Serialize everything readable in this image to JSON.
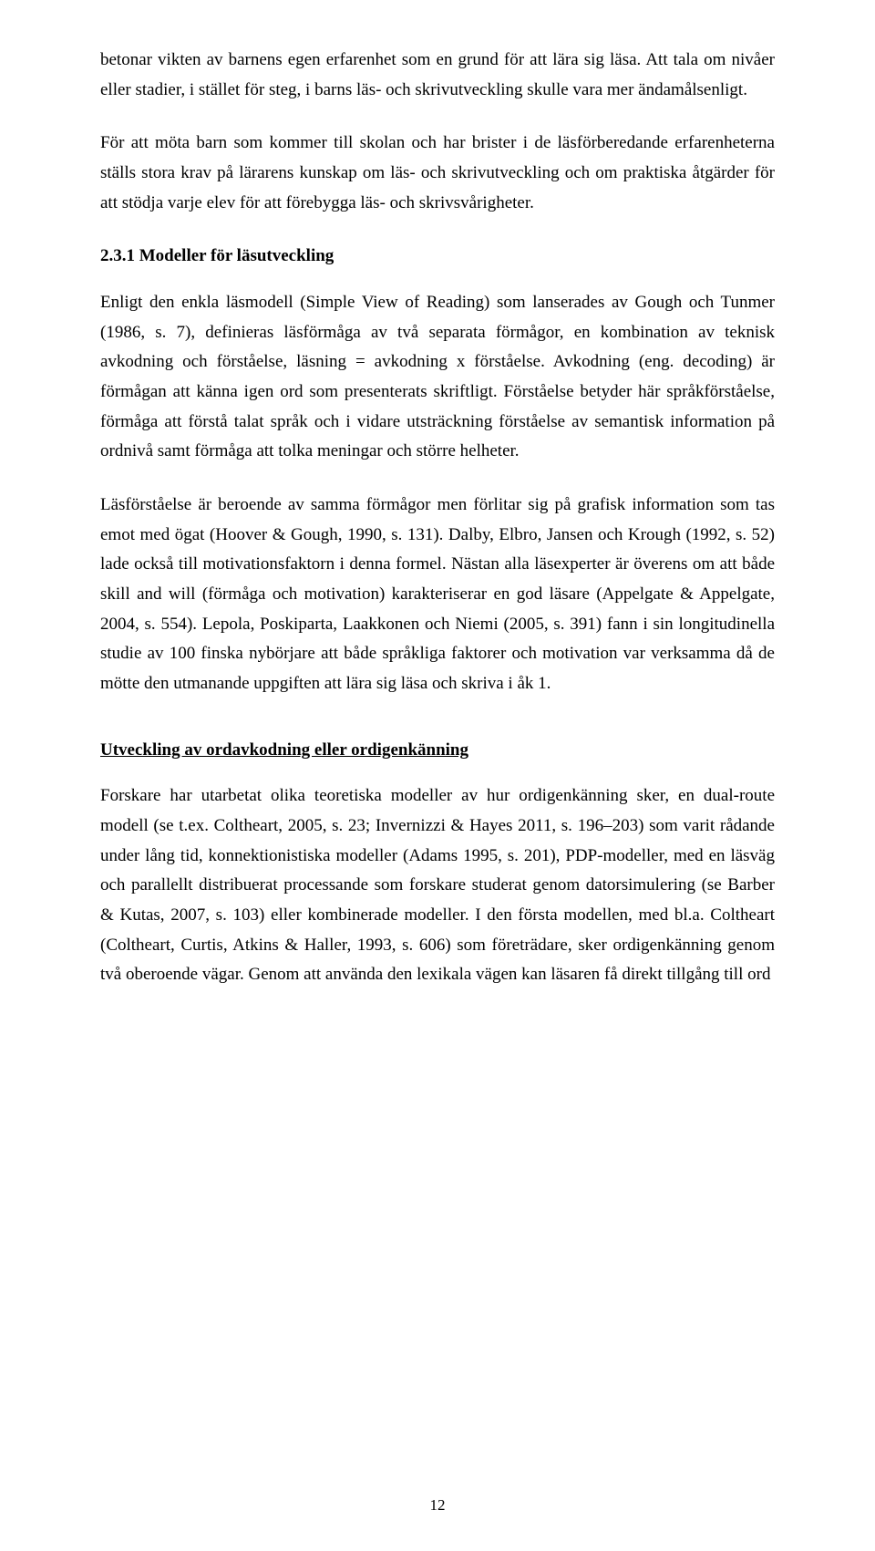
{
  "body": {
    "p1": "betonar vikten av barnens egen erfarenhet som en grund för att lära sig läsa. Att tala om nivåer eller stadier, i stället för steg, i barns läs- och skrivutveckling skulle vara mer ändamålsenligt.",
    "p2": "För att möta barn som kommer till skolan och har brister i de läsförberedande erfarenheterna ställs stora krav på lärarens kunskap om läs- och skrivutveckling och om praktiska åtgärder för att stödja varje elev för att förebygga läs- och skrivsvårigheter.",
    "h3_1": "2.3.1 Modeller för läsutveckling",
    "p3": "Enligt den enkla läsmodell (Simple View of Reading) som lanserades av Gough och Tunmer (1986, s. 7), definieras läsförmåga av två separata förmågor, en kombination av teknisk avkodning och förståelse, läsning = avkodning x förståelse. Avkodning (eng. decoding) är förmågan att känna igen ord som presenterats skriftligt. Förståelse betyder här språkförståelse, förmåga att förstå talat språk och i vidare utsträckning förståelse av semantisk information på ordnivå samt förmåga att tolka meningar och större helheter.",
    "p4": "Läsförståelse är beroende av samma förmågor men förlitar sig på grafisk information som tas emot med ögat (Hoover & Gough, 1990, s. 131). Dalby, Elbro, Jansen och Krough (1992, s. 52) lade också till motivationsfaktorn i denna formel. Nästan alla läsexperter är överens om att både skill and will (förmåga och motivation) karakteriserar en god läsare (Appelgate & Appelgate, 2004, s. 554). Lepola, Poskiparta, Laakkonen och Niemi (2005, s. 391) fann i sin longitudinella studie av 100 finska nybörjare att både språkliga faktorer och motivation var verksamma då de mötte den utmanande uppgiften att lära sig läsa och skriva i åk 1.",
    "sub1": "Utveckling av ordavkodning eller ordigenkänning",
    "p5": "Forskare har utarbetat olika teoretiska modeller av hur ordigenkänning sker, en dual-route modell (se t.ex. Coltheart, 2005, s. 23; Invernizzi & Hayes 2011, s. 196–203) som varit rådande under lång tid, konnektionistiska modeller (Adams 1995, s. 201), PDP-modeller, med en läsväg och parallellt distribuerat processande som forskare studerat genom datorsimulering (se Barber & Kutas, 2007, s. 103) eller kombinerade modeller. I den första modellen, med bl.a. Coltheart (Coltheart, Curtis, Atkins & Haller, 1993, s. 606) som företrädare, sker ordigenkänning genom två oberoende vägar. Genom att använda den lexikala vägen kan läsaren få direkt tillgång till ord"
  },
  "page_number": "12"
}
